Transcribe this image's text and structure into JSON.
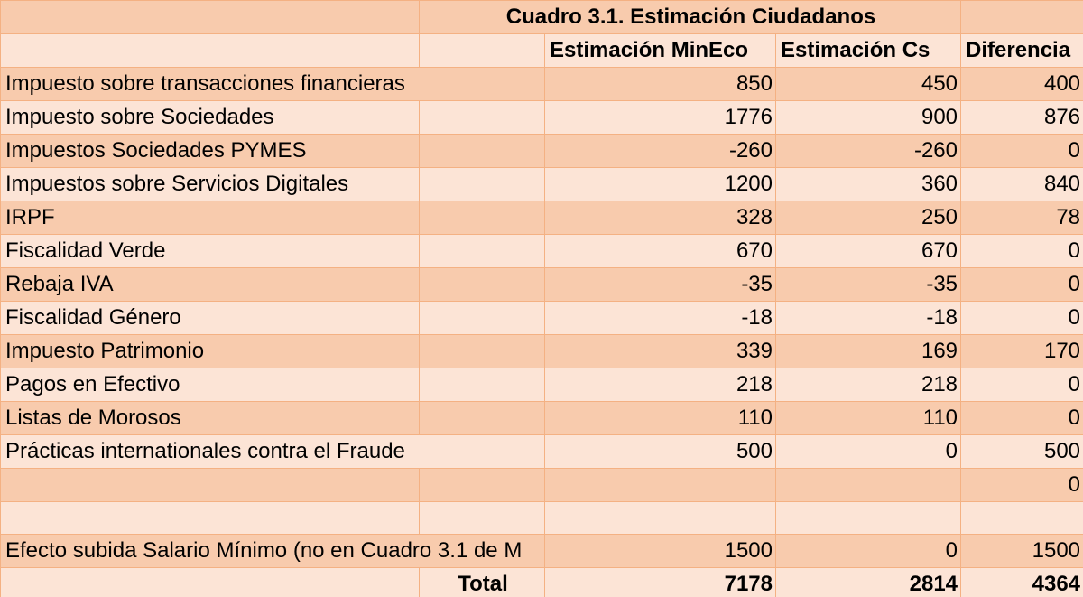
{
  "table": {
    "title": "Cuadro 3.1. Estimación Ciudadanos",
    "headers": [
      "Estimación MinEco",
      "Estimación Cs",
      "Diferencia"
    ],
    "rows": [
      {
        "label": "Impuesto sobre transacciones financieras",
        "mineco": "850",
        "cs": "450",
        "diff": "400"
      },
      {
        "label": "Impuesto sobre Sociedades",
        "mineco": "1776",
        "cs": "900",
        "diff": "876"
      },
      {
        "label": "Impuestos Sociedades PYMES",
        "mineco": "-260",
        "cs": "-260",
        "diff": "0"
      },
      {
        "label": "Impuestos sobre Servicios Digitales",
        "mineco": "1200",
        "cs": "360",
        "diff": "840"
      },
      {
        "label": "IRPF",
        "mineco": "328",
        "cs": "250",
        "diff": "78"
      },
      {
        "label": "Fiscalidad Verde",
        "mineco": "670",
        "cs": "670",
        "diff": "0"
      },
      {
        "label": "Rebaja IVA",
        "mineco": "-35",
        "cs": "-35",
        "diff": "0"
      },
      {
        "label": "Fiscalidad Género",
        "mineco": "-18",
        "cs": "-18",
        "diff": "0"
      },
      {
        "label": "Impuesto Patrimonio",
        "mineco": "339",
        "cs": "169",
        "diff": "170"
      },
      {
        "label": "Pagos en Efectivo",
        "mineco": "218",
        "cs": "218",
        "diff": "0"
      },
      {
        "label": "Listas de Morosos",
        "mineco": "110",
        "cs": "110",
        "diff": "0"
      },
      {
        "label": "Prácticas internationales contra el Fraude",
        "mineco": "500",
        "cs": "0",
        "diff": "500"
      },
      {
        "label": "",
        "mineco": "",
        "cs": "",
        "diff": "0"
      },
      {
        "label": "",
        "mineco": "",
        "cs": "",
        "diff": ""
      },
      {
        "label": "Efecto subida Salario Mínimo (no en Cuadro 3.1 de M",
        "mineco": "1500",
        "cs": "0",
        "diff": "1500"
      }
    ],
    "total": {
      "label": "Total",
      "mineco": "7178",
      "cs": "2814",
      "diff": "4364"
    }
  },
  "colors": {
    "row_dark": "#f8cbad",
    "row_light": "#fce4d6",
    "gridline": "#f4b183"
  }
}
